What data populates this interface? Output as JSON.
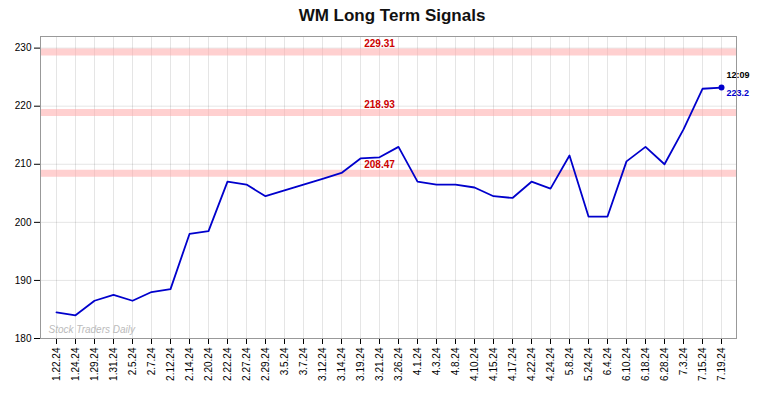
{
  "chart_data": {
    "type": "line",
    "title": "WM Long Term Signals",
    "categories": [
      "1.22.24",
      "1.24.24",
      "1.29.24",
      "1.31.24",
      "2.5.24",
      "2.7.24",
      "2.12.24",
      "2.14.24",
      "2.20.24",
      "2.22.24",
      "2.27.24",
      "2.29.24",
      "3.5.24",
      "3.7.24",
      "3.12.24",
      "3.14.24",
      "3.19.24",
      "3.21.24",
      "3.26.24",
      "4.1.24",
      "4.3.24",
      "4.8.24",
      "4.10.24",
      "4.15.24",
      "4.17.24",
      "4.22.24",
      "4.24.24",
      "5.8.24",
      "5.24.24",
      "6.4.24",
      "6.10.24",
      "6.18.24",
      "6.28.24",
      "7.3.24",
      "7.15.24",
      "7.19.24"
    ],
    "values": [
      184.5,
      184.0,
      186.5,
      187.5,
      186.5,
      188.0,
      188.5,
      198.0,
      198.5,
      207.0,
      206.5,
      204.5,
      205.5,
      206.5,
      207.5,
      208.5,
      211.0,
      211.2,
      213.0,
      207.0,
      206.5,
      206.5,
      206.0,
      204.5,
      204.2,
      207.0,
      205.8,
      211.5,
      201.0,
      201.0,
      210.5,
      213.0,
      210.0,
      216.0,
      223.0,
      223.2
    ],
    "color": "#0000cc",
    "ylim": [
      180,
      232
    ],
    "yticks": [
      180,
      190,
      200,
      210,
      220,
      230
    ],
    "grid": true,
    "hlines": [
      {
        "value": 229.31,
        "color": "#ffaaaa"
      },
      {
        "value": 218.93,
        "color": "#ffaaaa"
      },
      {
        "value": 208.47,
        "color": "#ffaaaa"
      }
    ],
    "annotations": [
      {
        "text": "12:09",
        "color": "#000000"
      },
      {
        "text": "223.2",
        "color": "#0000cc"
      },
      {
        "text": "Stock Traders Daily",
        "color": "#bbbbbb"
      }
    ]
  }
}
